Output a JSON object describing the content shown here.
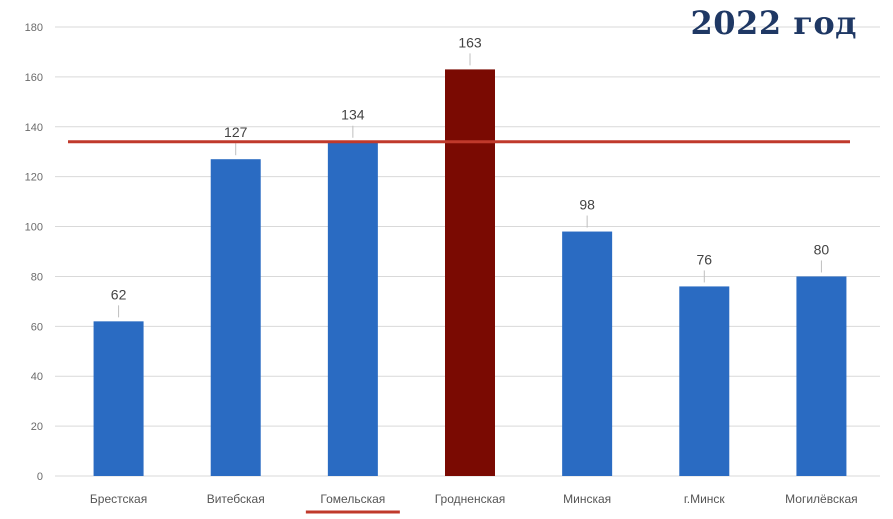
{
  "title": "2022 год",
  "chart_data": {
    "type": "bar",
    "title": "2022 год",
    "categories": [
      "Брестская",
      "Витебская",
      "Гомельская",
      "Гродненская",
      "Минская",
      "г.Минск",
      "Могилёвская"
    ],
    "values": [
      62,
      127,
      134,
      163,
      98,
      76,
      80
    ],
    "bar_colors": [
      "#2a6bc2",
      "#2a6bc2",
      "#2a6bc2",
      "#7a0a02",
      "#2a6bc2",
      "#2a6bc2",
      "#2a6bc2"
    ],
    "highlighted_category": "Гродненская",
    "underlined_category": "Гомельская",
    "reference_line_value": 134,
    "reference_line_color": "#c0392b",
    "ylim": [
      0,
      180
    ],
    "yticks": [
      0,
      20,
      40,
      60,
      80,
      100,
      120,
      140,
      160,
      180
    ],
    "grid": true,
    "legend": "none",
    "xlabel": "",
    "ylabel": ""
  }
}
